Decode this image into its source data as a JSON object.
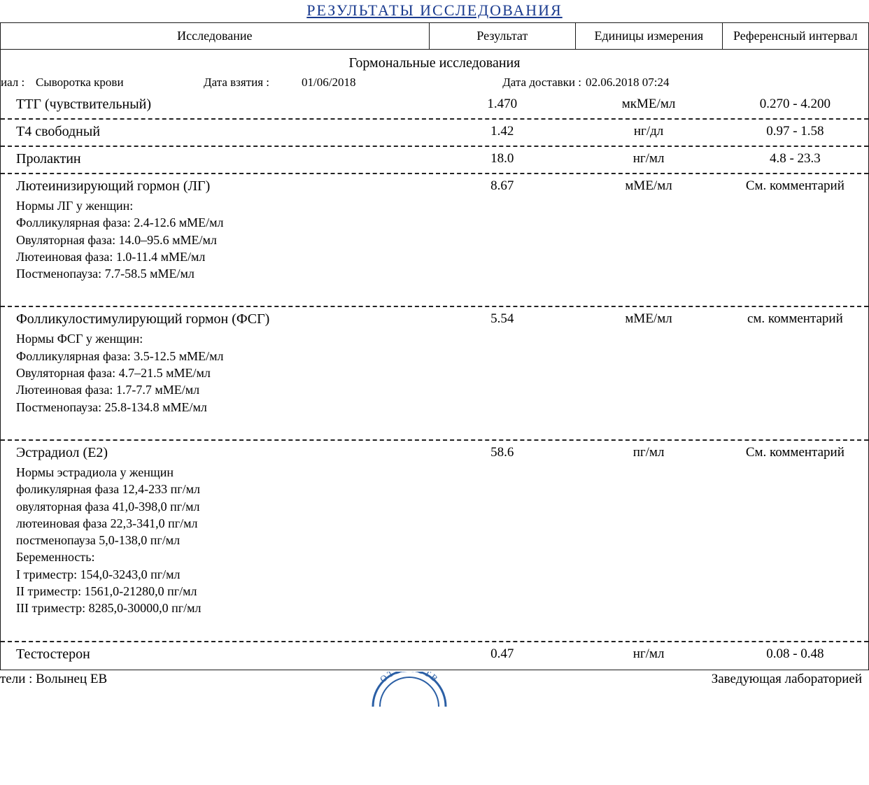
{
  "title": "РЕЗУЛЬТАТЫ ИССЛЕДОВАНИЯ",
  "columns": {
    "test": "Исследование",
    "result": "Результат",
    "units": "Единицы измерения",
    "reference": "Референсный интервал"
  },
  "section_title": "Гормональные исследования",
  "meta": {
    "material_label": "иал :",
    "material_value": "Сыворотка крови",
    "collect_label": "Дата взятия :",
    "collect_value": "01/06/2018",
    "delivery_label": "Дата доставки :",
    "delivery_value": "02.06.2018 07:24"
  },
  "rows": [
    {
      "name": "ТТГ (чувствительный)",
      "result": "1.470",
      "units": "мкМЕ/мл",
      "reference": "0.270 - 4.200",
      "norms": []
    },
    {
      "name": "Т4 свободный",
      "result": "1.42",
      "units": "нг/дл",
      "reference": "0.97 - 1.58",
      "norms": []
    },
    {
      "name": "Пролактин",
      "result": "18.0",
      "units": "нг/мл",
      "reference": "4.8 - 23.3",
      "norms": []
    },
    {
      "name": "Лютеинизирующий гормон (ЛГ)",
      "result": "8.67",
      "units": "мМЕ/мл",
      "reference": "См. комментарий",
      "norms": [
        "Нормы ЛГ у женщин:",
        "Фолликулярная фаза: 2.4-12.6 мМЕ/мл",
        "Овуляторная фаза:  14.0–95.6 мМЕ/мл",
        "Лютеиновая фаза: 1.0-11.4 мМЕ/мл",
        "Постменопауза: 7.7-58.5 мМЕ/мл"
      ]
    },
    {
      "name": "Фолликулостимулирующий гормон (ФСГ)",
      "result": "5.54",
      "units": "мМЕ/мл",
      "reference": "см. комментарий",
      "norms": [
        "Нормы ФСГ у женщин:",
        "Фолликулярная фаза: 3.5-12.5 мМЕ/мл",
        "Овуляторная фаза:  4.7–21.5 мМЕ/мл",
        "Лютеиновая фаза: 1.7-7.7 мМЕ/мл",
        "Постменопауза: 25.8-134.8 мМЕ/мл"
      ]
    },
    {
      "name": "Эстрадиол (Е2)",
      "result": "58.6",
      "units": "пг/мл",
      "reference": "См. комментарий",
      "norms": [
        "Нормы эстрадиола у женщин",
        "фоликулярная фаза 12,4-233 пг/мл",
        "овуляторная фаза 41,0-398,0 пг/мл",
        "лютеиновая фаза 22,3-341,0 пг/мл",
        "постменопауза 5,0-138,0 пг/мл",
        "Беременность:",
        "I триместр: 154,0-3243,0 пг/мл",
        "II триместр: 1561,0-21280,0 пг/мл",
        "III триместр: 8285,0-30000,0 пг/мл"
      ]
    },
    {
      "name": "Тестостерон",
      "result": "0.47",
      "units": "нг/мл",
      "reference": "0.08 - 0.48",
      "norms": []
    }
  ],
  "footer": {
    "left_label": "тели  :",
    "left_value": "Волынец ЕВ",
    "right": "Заведующая лабораторией",
    "stamp_top": "ОТВЕТСТВ"
  },
  "colors": {
    "title_color": "#1a3b8f",
    "stamp_blue": "#2b5fa5",
    "border": "#1a1a1a",
    "dash": "#222222"
  }
}
